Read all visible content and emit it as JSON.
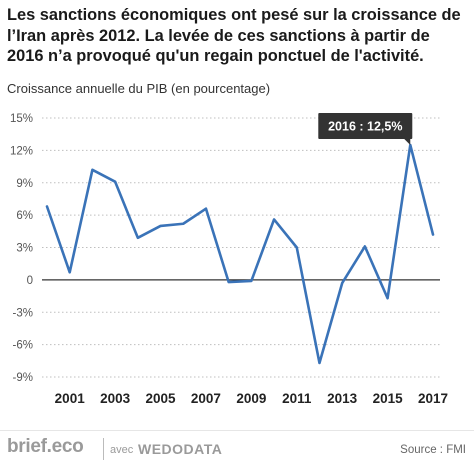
{
  "title": "Les sanctions économiques ont pesé sur la croissance de l’Iran après 2012. La levée de ces sanctions à partir de 2016 n’a provoqué qu'un regain ponctuel de l'activité.",
  "footer": {
    "brand": "brief.eco",
    "avec": "avec",
    "partner": "WEDODATA",
    "source": "Source : FMI"
  },
  "colors": {
    "line": "#3a73b8",
    "callout_bg": "#333333",
    "grid": "#bfbfbf",
    "zero_line": "#333333"
  },
  "chart_data": {
    "type": "line",
    "title": "",
    "ylabel": "Croissance annuelle du PIB (en pourcentage)",
    "xlabel": "",
    "x": [
      2000,
      2001,
      2002,
      2003,
      2004,
      2005,
      2006,
      2007,
      2008,
      2009,
      2010,
      2011,
      2012,
      2013,
      2014,
      2015,
      2016,
      2017
    ],
    "series": [
      {
        "values": [
          6.8,
          0.7,
          10.2,
          9.1,
          3.9,
          5.0,
          5.2,
          6.6,
          -0.2,
          -0.1,
          5.6,
          3.0,
          -7.7,
          -0.3,
          3.1,
          -1.7,
          12.5,
          4.2
        ]
      }
    ],
    "xticks": [
      2001,
      2003,
      2005,
      2007,
      2009,
      2011,
      2013,
      2015,
      2017
    ],
    "xtick_labels": [
      "2001",
      "2003",
      "2005",
      "2007",
      "2009",
      "2011",
      "2013",
      "2015",
      "2017"
    ],
    "yticks": [
      15,
      12,
      9,
      6,
      3,
      0,
      -3,
      -6,
      -9
    ],
    "ytick_labels": [
      "15%",
      "12%",
      "9%",
      "6%",
      "3%",
      "0",
      "-3%",
      "-6%",
      "-9%"
    ],
    "ylim": [
      -9,
      15
    ],
    "xlim": [
      2000,
      2017
    ],
    "grid": true,
    "annotation": {
      "x": 2016,
      "y": 12.5,
      "text": "2016 : 12,5%"
    }
  }
}
